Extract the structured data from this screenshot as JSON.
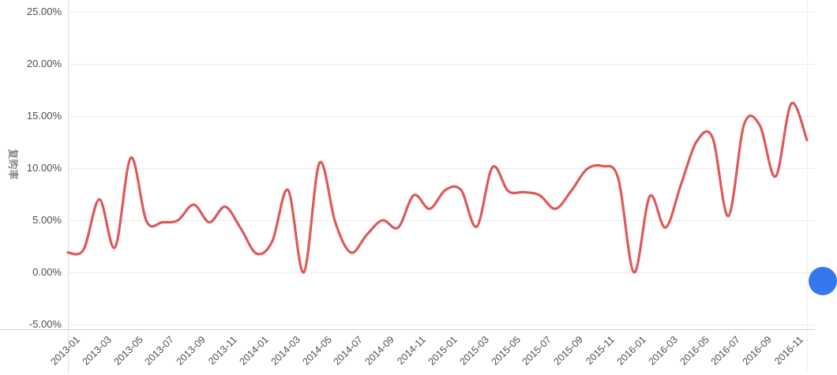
{
  "chart_data": {
    "type": "line",
    "series_name": "复购率",
    "ylabel": "复购率",
    "xlabel": "",
    "smooth": true,
    "grid": true,
    "legend": "none",
    "ylim": [
      -5,
      25
    ],
    "y_ticks": [
      {
        "label": "25.00%",
        "value": 25
      },
      {
        "label": "20.00%",
        "value": 20
      },
      {
        "label": "15.00%",
        "value": 15
      },
      {
        "label": "10.00%",
        "value": 10
      },
      {
        "label": "5.00%",
        "value": 5
      },
      {
        "label": "0.00%",
        "value": 0
      },
      {
        "label": "-5.00%",
        "value": -5
      }
    ],
    "x": [
      "2013-01",
      "2013-02",
      "2013-03",
      "2013-04",
      "2013-05",
      "2013-06",
      "2013-07",
      "2013-08",
      "2013-09",
      "2013-10",
      "2013-11",
      "2013-12",
      "2014-01",
      "2014-02",
      "2014-03",
      "2014-04",
      "2014-05",
      "2014-06",
      "2014-07",
      "2014-08",
      "2014-09",
      "2014-10",
      "2014-11",
      "2014-12",
      "2015-01",
      "2015-02",
      "2015-03",
      "2015-04",
      "2015-05",
      "2015-06",
      "2015-07",
      "2015-08",
      "2015-09",
      "2015-10",
      "2015-11",
      "2015-12",
      "2016-01",
      "2016-02",
      "2016-03",
      "2016-04",
      "2016-05",
      "2016-06",
      "2016-07",
      "2016-08",
      "2016-09",
      "2016-10",
      "2016-11",
      "2016-12"
    ],
    "values": [
      1.9,
      2.2,
      7.0,
      2.4,
      11.0,
      4.9,
      4.8,
      5.0,
      6.5,
      4.8,
      6.3,
      4.2,
      1.8,
      3.0,
      7.9,
      0.0,
      10.5,
      4.8,
      1.9,
      3.6,
      5.0,
      4.3,
      7.4,
      6.1,
      7.9,
      7.9,
      4.4,
      10.1,
      7.8,
      7.7,
      7.4,
      6.1,
      7.8,
      9.9,
      10.2,
      9.0,
      0.0,
      7.3,
      4.3,
      8.5,
      12.6,
      12.9,
      5.4,
      14.2,
      14.1,
      9.2,
      16.2,
      12.7
    ],
    "x_tick_every": 2,
    "x_visible_labels": [
      "2013-01",
      "2013-03",
      "2013-05",
      "2013-07",
      "2013-09",
      "2013-11",
      "2014-01",
      "2014-03",
      "2014-05",
      "2014-07",
      "2014-09",
      "2014-11",
      "2015-01",
      "2015-03",
      "2015-05",
      "2015-07",
      "2015-09",
      "2015-11",
      "2016-01",
      "2016-03",
      "2016-05",
      "2016-07",
      "2016-09",
      "2016-11"
    ],
    "line_color": "#dd5a5b",
    "grid_color": "#ececec",
    "axis_label_color": "#4e4e4e"
  },
  "floating_button": {
    "color": "#3677f0"
  }
}
